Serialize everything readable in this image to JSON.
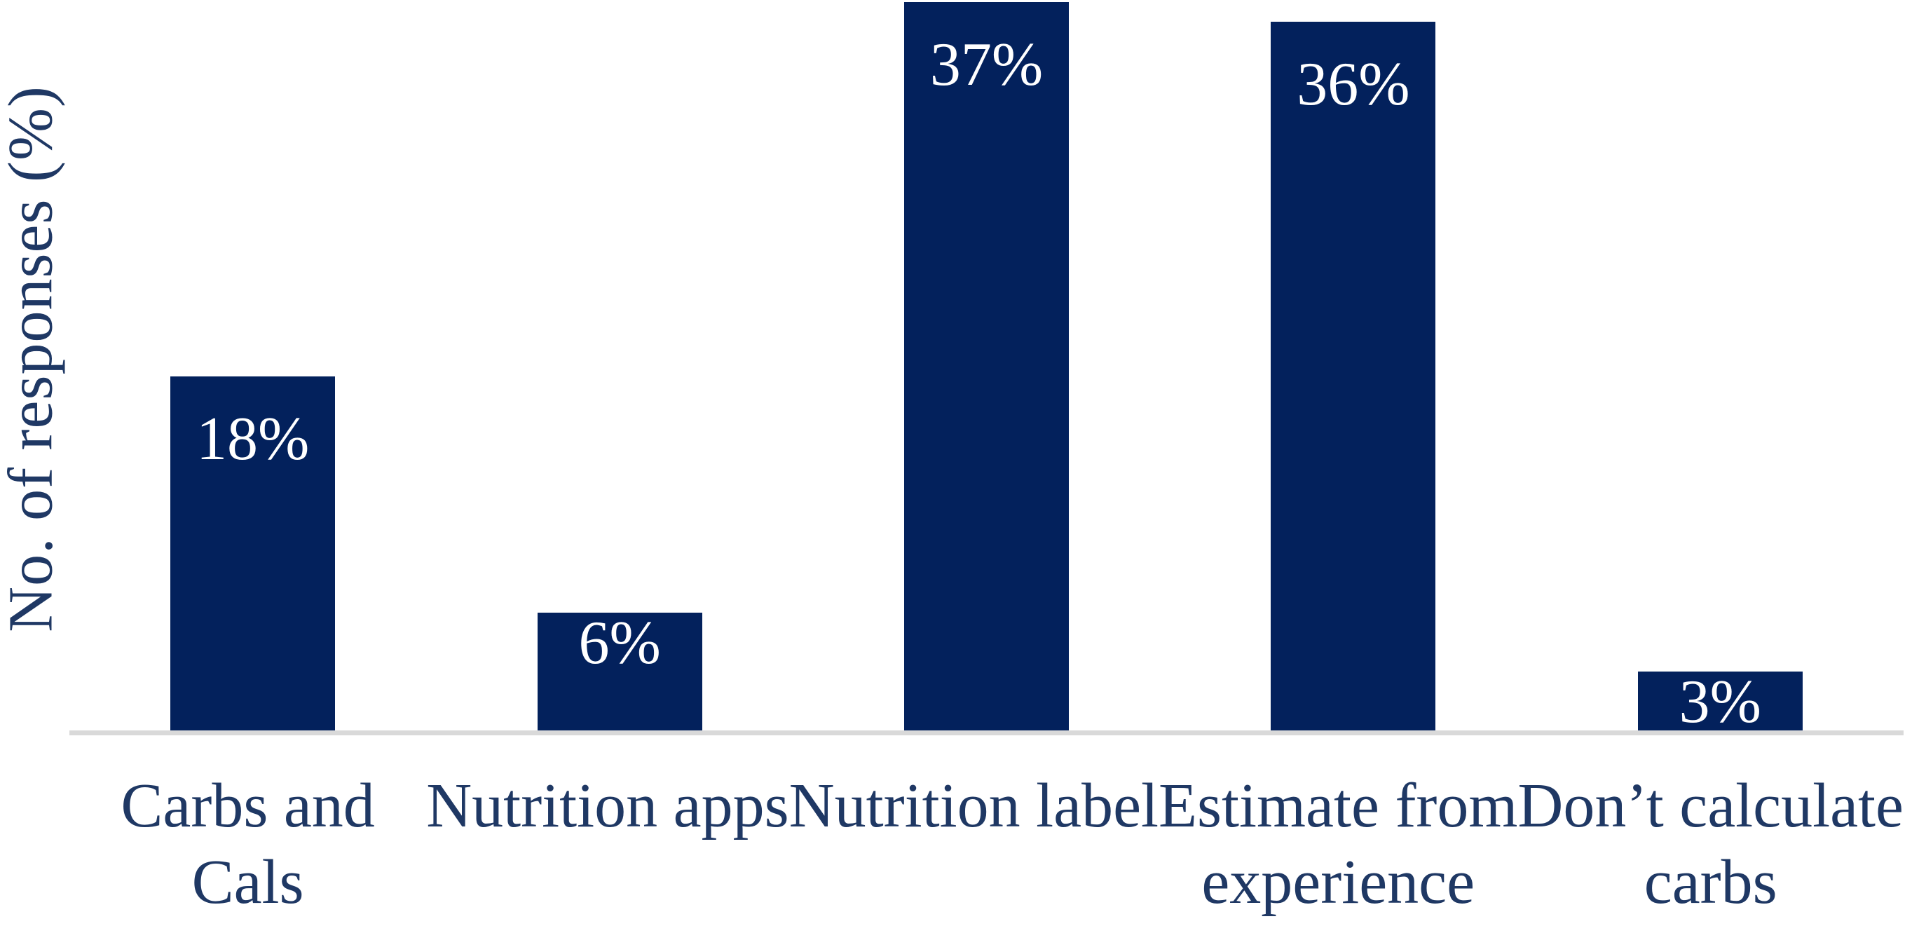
{
  "chart_data": {
    "type": "bar",
    "title": "",
    "xlabel": "",
    "ylabel": "No. of responses (%)",
    "categories": [
      "Carbs and Cals",
      "Nutrition apps",
      "Nutrition label",
      "Estimate from experience",
      "Don’t calculate carbs"
    ],
    "category_lines": [
      [
        "Carbs and",
        "Cals"
      ],
      [
        "Nutrition apps"
      ],
      [
        "Nutrition label"
      ],
      [
        "Estimate from",
        "experience"
      ],
      [
        "Don’t calculate",
        "carbs"
      ]
    ],
    "values": [
      18,
      6,
      37,
      36,
      3
    ],
    "data_labels": [
      "18%",
      "6%",
      "37%",
      "36%",
      "3%"
    ],
    "ylim": [
      0,
      37
    ],
    "grid": false,
    "legend": false,
    "colors": {
      "bar_fill": "#03215C",
      "data_label_text": "#FFFFFF",
      "axis_text": "#1F3864",
      "axis_line": "#D9D9D9"
    }
  }
}
